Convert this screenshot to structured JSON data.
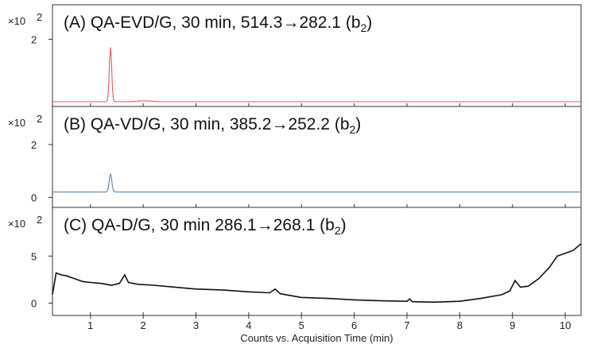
{
  "chart_data": {
    "type": "line",
    "x_axis": {
      "label": "Counts vs. Acquisition Time (min)",
      "ticks": [
        1,
        2,
        3,
        4,
        5,
        6,
        7,
        8,
        9,
        10
      ],
      "range": [
        0.28,
        10.3
      ]
    },
    "panels": [
      {
        "id": "A",
        "title_prefix": "(A) QA-EVD/G, 30 min, 514.3",
        "title_suffix": "282.1 (b",
        "subscript": "2",
        "close": ")",
        "scale_label": "×10",
        "scale_exp": "2",
        "y_ticks": [
          2
        ],
        "y_tick_labels": [
          "2"
        ],
        "ylim": [
          0,
          2.9
        ],
        "color": "#e05a55",
        "baseline": 0.0,
        "peaks": [
          {
            "x": 1.38,
            "height": 1.75,
            "width": 0.022
          },
          {
            "x": 2.02,
            "height": 0.03,
            "width": 0.12
          }
        ]
      },
      {
        "id": "B",
        "title_prefix": "(B) QA-VD/G, 30 min, 385.2",
        "title_suffix": "252.2 (b",
        "subscript": "2",
        "close": ")",
        "scale_label": "×10",
        "scale_exp": "2",
        "y_ticks": [
          0,
          2
        ],
        "y_tick_labels": [
          "0",
          "2"
        ],
        "ylim": [
          -0.2,
          3.2
        ],
        "color": "#5c86a8",
        "baseline": 0.2,
        "peaks": [
          {
            "x": 1.38,
            "height": 0.68,
            "width": 0.025
          }
        ]
      },
      {
        "id": "C",
        "title_prefix": "(C)  QA-D/G, 30 min 286.1",
        "title_suffix": "268.1 (b",
        "subscript": "2",
        "close": ")",
        "scale_label": "×10",
        "scale_exp": "2",
        "y_ticks": [
          0,
          5
        ],
        "y_tick_labels": [
          "0",
          "5"
        ],
        "ylim": [
          -0.8,
          9.5
        ],
        "color": "#111111",
        "trace": [
          [
            0.28,
            0.9
          ],
          [
            0.35,
            3.2
          ],
          [
            0.45,
            3.0
          ],
          [
            0.55,
            2.9
          ],
          [
            0.7,
            2.6
          ],
          [
            0.85,
            2.3
          ],
          [
            1.0,
            2.2
          ],
          [
            1.2,
            2.1
          ],
          [
            1.4,
            1.9
          ],
          [
            1.55,
            2.1
          ],
          [
            1.65,
            3.0
          ],
          [
            1.72,
            2.2
          ],
          [
            1.9,
            2.0
          ],
          [
            2.2,
            1.9
          ],
          [
            2.6,
            1.7
          ],
          [
            3.0,
            1.5
          ],
          [
            3.5,
            1.4
          ],
          [
            4.0,
            1.2
          ],
          [
            4.4,
            1.1
          ],
          [
            4.5,
            1.5
          ],
          [
            4.6,
            1.0
          ],
          [
            5.0,
            0.6
          ],
          [
            5.5,
            0.5
          ],
          [
            6.0,
            0.35
          ],
          [
            6.5,
            0.25
          ],
          [
            7.0,
            0.2
          ],
          [
            7.05,
            0.45
          ],
          [
            7.1,
            0.15
          ],
          [
            7.5,
            0.1
          ],
          [
            8.0,
            0.2
          ],
          [
            8.4,
            0.5
          ],
          [
            8.8,
            0.9
          ],
          [
            8.95,
            1.3
          ],
          [
            9.05,
            2.4
          ],
          [
            9.15,
            1.7
          ],
          [
            9.3,
            1.8
          ],
          [
            9.5,
            2.6
          ],
          [
            9.7,
            3.8
          ],
          [
            9.85,
            5.0
          ],
          [
            10.0,
            5.3
          ],
          [
            10.15,
            5.6
          ],
          [
            10.3,
            6.3
          ]
        ]
      }
    ]
  }
}
